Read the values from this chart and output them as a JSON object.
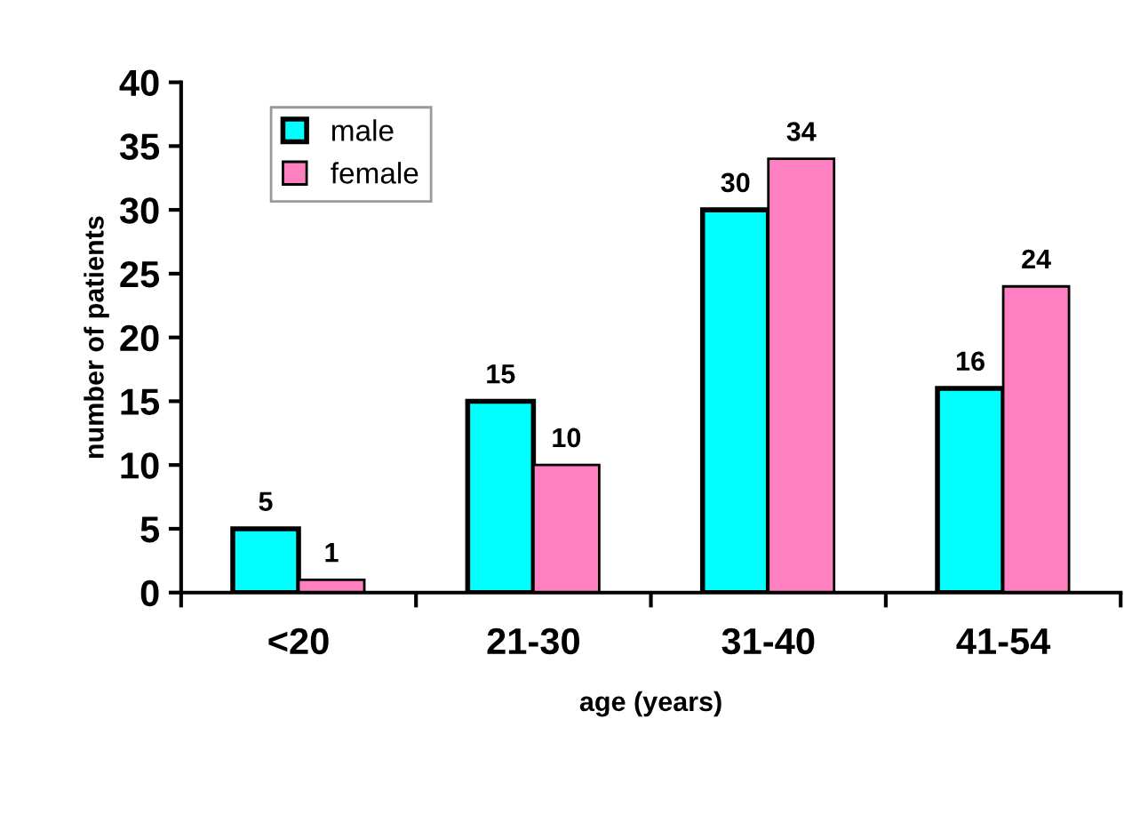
{
  "chart_data": {
    "type": "bar",
    "xlabel": "age (years)",
    "ylabel": "number of patients",
    "categories": [
      "<20",
      "21-30",
      "31-40",
      "41-54"
    ],
    "series": [
      {
        "name": "male",
        "color": "#00ffff",
        "values": [
          5,
          15,
          30,
          16
        ]
      },
      {
        "name": "female",
        "color": "#ff80c0",
        "values": [
          1,
          10,
          34,
          24
        ]
      }
    ],
    "ylim": [
      0,
      40
    ],
    "yticks": [
      0,
      5,
      10,
      15,
      20,
      25,
      30,
      35,
      40
    ],
    "data_labels": true,
    "legend": "top left",
    "grid": false
  }
}
